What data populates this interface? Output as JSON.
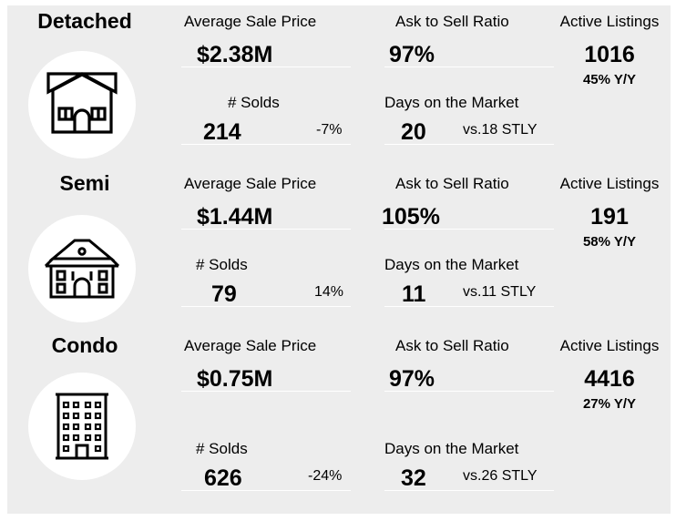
{
  "sections": [
    {
      "name": "Detached",
      "icon": "detached-house-icon",
      "avg_price_label": "Average Sale Price",
      "avg_price": "$2.38M",
      "ask_label": "Ask to Sell Ratio",
      "ask": "97%",
      "active_label": "Active Listings",
      "active": "1016",
      "active_yoy": "45% Y/Y",
      "solds_label": "# Solds",
      "solds": "214",
      "solds_change": "-7%",
      "dom_label": "Days on the Market",
      "dom": "20",
      "dom_cmp": "vs.18 STLY"
    },
    {
      "name": "Semi",
      "icon": "semi-house-icon",
      "avg_price_label": "Average Sale Price",
      "avg_price": "$1.44M",
      "ask_label": "Ask to Sell Ratio",
      "ask": "105%",
      "active_label": "Active Listings",
      "active": "191",
      "active_yoy": "58% Y/Y",
      "solds_label": "# Solds",
      "solds": "79",
      "solds_change": "14%",
      "dom_label": "Days on the Market",
      "dom": "11",
      "dom_cmp": "vs.11 STLY"
    },
    {
      "name": "Condo",
      "icon": "condo-building-icon",
      "avg_price_label": "Average Sale Price",
      "avg_price": "$0.75M",
      "ask_label": "Ask to Sell Ratio",
      "ask": "97%",
      "active_label": "Active Listings",
      "active": "4416",
      "active_yoy": "27% Y/Y",
      "solds_label": "# Solds",
      "solds": "626",
      "solds_change": "-24%",
      "dom_label": "Days on the Market",
      "dom": "32",
      "dom_cmp": "vs.26 STLY"
    }
  ]
}
